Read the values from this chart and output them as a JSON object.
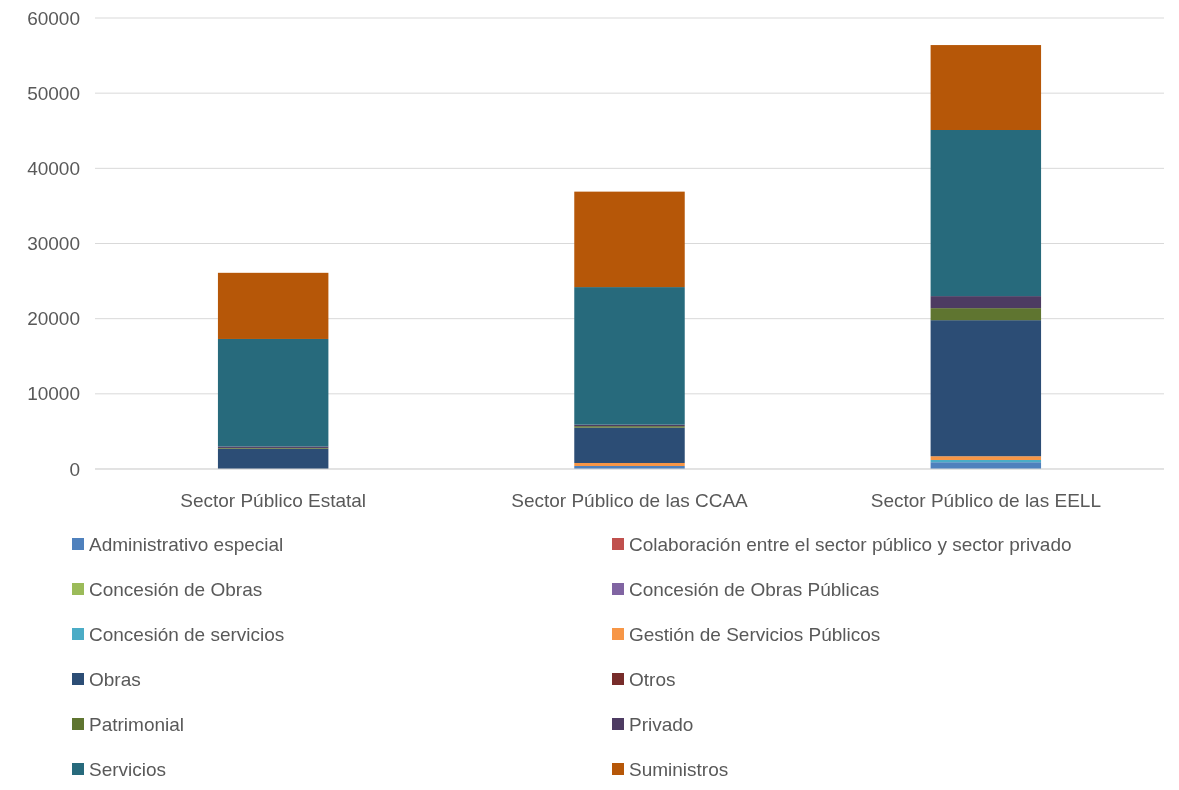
{
  "chart_data": {
    "type": "bar",
    "stacked": true,
    "categories": [
      "Sector Público Estatal",
      "Sector Público de las CCAA",
      "Sector Público de las EELL"
    ],
    "series": [
      {
        "name": "Administrativo especial",
        "color": "#4f81bd",
        "values": [
          null,
          400,
          900
        ]
      },
      {
        "name": "Colaboración entre el sector público y sector privado",
        "color": "#c0504d",
        "values": [
          0,
          0,
          0
        ]
      },
      {
        "name": "Concesión de Obras",
        "color": "#9bbb59",
        "values": [
          0,
          0,
          0
        ]
      },
      {
        "name": "Concesión de Obras Públicas",
        "color": "#8064a2",
        "values": [
          0,
          0,
          0
        ]
      },
      {
        "name": "Concesión de servicios",
        "color": "#4bacc6",
        "values": [
          0,
          0,
          300
        ]
      },
      {
        "name": "Gestión de Servicios Públicos",
        "color": "#f79646",
        "values": [
          null,
          400,
          500
        ]
      },
      {
        "name": "Obras",
        "color": "#2c4d75",
        "values": [
          2700,
          4700,
          18100
        ]
      },
      {
        "name": "Otros",
        "color": "#772c2a",
        "values": [
          0,
          0,
          0
        ]
      },
      {
        "name": "Patrimonial",
        "color": "#5f7530",
        "values": [
          100,
          200,
          1600
        ]
      },
      {
        "name": "Privado",
        "color": "#4d3b62",
        "values": [
          200,
          200,
          1600
        ]
      },
      {
        "name": "Servicios",
        "color": "#276a7c",
        "values": [
          14300,
          18300,
          22100
        ]
      },
      {
        "name": "Suministros",
        "color": "#b65708",
        "values": [
          8800,
          12700,
          11300
        ]
      }
    ],
    "ylim": [
      0,
      60000
    ],
    "yticks": [
      0,
      10000,
      20000,
      30000,
      40000,
      50000,
      60000
    ],
    "grid": "y",
    "legend": "bottom"
  }
}
